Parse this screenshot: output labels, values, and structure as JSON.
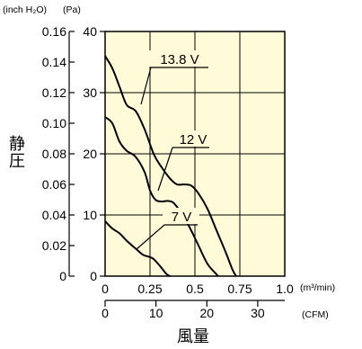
{
  "chart_data": {
    "type": "line",
    "title": "",
    "xlabel": "風量",
    "ylabel": "静圧",
    "x_unit": "(m³/min)",
    "x2_unit": "(CFM)",
    "y_unit_inch": "(inch H₂O)",
    "y_unit_pa": "(Pa)",
    "xlim": [
      0,
      1.0
    ],
    "ylim": [
      0,
      40
    ],
    "grid": true,
    "x_ticks": [
      "0",
      "0.25",
      "0.5",
      "0.75",
      "1.0"
    ],
    "x2_ticks": [
      "0",
      "10",
      "20",
      "30"
    ],
    "y_ticks_pa": [
      "0",
      "10",
      "20",
      "30",
      "40"
    ],
    "y_ticks_inch": [
      "0",
      "0.02",
      "0.04",
      "0.06",
      "0.08",
      "0.10",
      "0.12",
      "0.14",
      "0.16"
    ],
    "series": [
      {
        "name": "13.8 V",
        "x": [
          0,
          0.04,
          0.08,
          0.12,
          0.17,
          0.22,
          0.27,
          0.31,
          0.36,
          0.4,
          0.44,
          0.48,
          0.52,
          0.57,
          0.62,
          0.67,
          0.71,
          0.73
        ],
        "y": [
          36,
          34,
          31,
          28,
          27,
          24,
          20,
          18,
          16,
          15,
          15,
          14.8,
          13.5,
          11,
          7.5,
          4,
          1,
          0
        ]
      },
      {
        "name": "12 V",
        "x": [
          0,
          0.04,
          0.08,
          0.12,
          0.17,
          0.22,
          0.25,
          0.28,
          0.31,
          0.35,
          0.38,
          0.42,
          0.47,
          0.52,
          0.57,
          0.62,
          0.63
        ],
        "y": [
          26,
          25,
          22,
          20.5,
          19.5,
          17,
          14,
          12.5,
          12.2,
          12.3,
          12,
          10.5,
          8,
          5,
          2,
          0.3,
          0
        ]
      },
      {
        "name": "7 V",
        "x": [
          0,
          0.04,
          0.08,
          0.12,
          0.17,
          0.21,
          0.24,
          0.27,
          0.31,
          0.34,
          0.36
        ],
        "y": [
          9,
          7.8,
          7,
          5.8,
          4.5,
          3.5,
          3.2,
          2.8,
          1.5,
          0.4,
          0
        ]
      }
    ]
  }
}
